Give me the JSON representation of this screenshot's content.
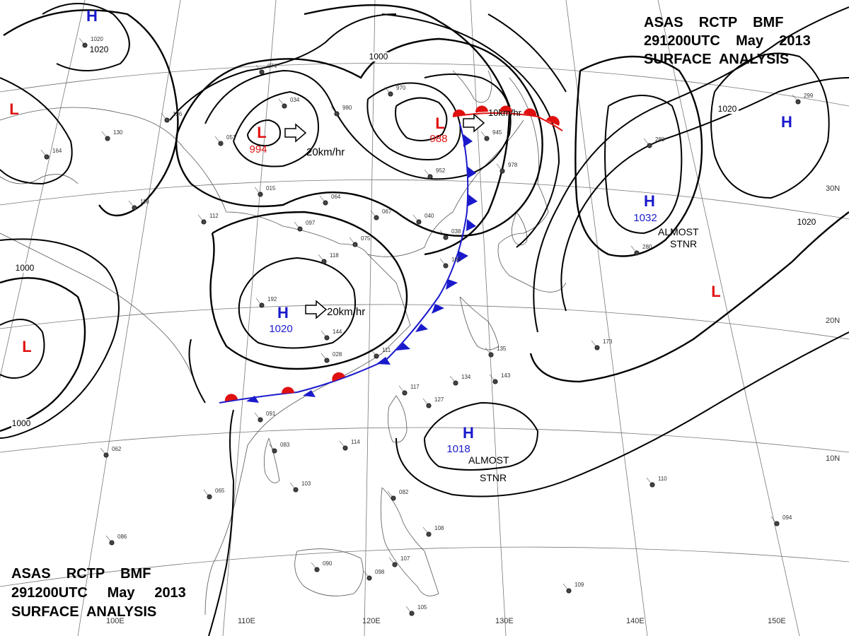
{
  "header": {
    "top_right": [
      "ASAS    RCTP    BMF",
      "291200UTC    May    2013",
      "SURFACE  ANALYSIS"
    ],
    "bottom_left": [
      "ASAS    RCTP    BMF",
      "291200UTC     May     2013",
      "SURFACE  ANALYSIS"
    ]
  },
  "colors": {
    "high": "#1a1acc",
    "low": "#e01010",
    "cold_front": "#1a1acc",
    "warm_front": "#e01010",
    "isobar": "#000000",
    "grid": "#777777",
    "coast": "#555555"
  },
  "grid": {
    "longitudes": [
      "110E",
      "120E",
      "130E",
      "140E",
      "150E",
      "100E"
    ],
    "latitudes": [
      "30N",
      "20N",
      "10N"
    ]
  },
  "isobar_labels": [
    "1020",
    "1000",
    "1020",
    "1020",
    "1000",
    "1000"
  ],
  "pressure_centers": [
    {
      "type": "H",
      "value": ""
    },
    {
      "type": "L",
      "value": ""
    },
    {
      "type": "L",
      "value": "994"
    },
    {
      "type": "L",
      "value": "988"
    },
    {
      "type": "H",
      "value": "1020"
    },
    {
      "type": "H",
      "value": "1032"
    },
    {
      "type": "H",
      "value": ""
    },
    {
      "type": "L",
      "value": ""
    },
    {
      "type": "L",
      "value": ""
    },
    {
      "type": "H",
      "value": "1018"
    }
  ],
  "motions": [
    "20km/hr",
    "20km/hr",
    "10km/hr"
  ],
  "annotations": [
    "ALMOST",
    "STNR",
    "ALMOST",
    "STNR"
  ],
  "stations": [
    "1020",
    "074",
    "034",
    "980",
    "970",
    "945",
    "978",
    "952",
    "126",
    "130",
    "164",
    "118",
    "112",
    "051",
    "015",
    "064",
    "067",
    "097",
    "075",
    "040",
    "038",
    "118",
    "192",
    "106",
    "028",
    "144",
    "111",
    "117",
    "127",
    "134",
    "143",
    "114",
    "091",
    "083",
    "103",
    "065",
    "062",
    "086",
    "090",
    "098",
    "105",
    "107",
    "108",
    "082",
    "094",
    "109",
    "110",
    "173",
    "280",
    "280",
    "299",
    "135"
  ]
}
